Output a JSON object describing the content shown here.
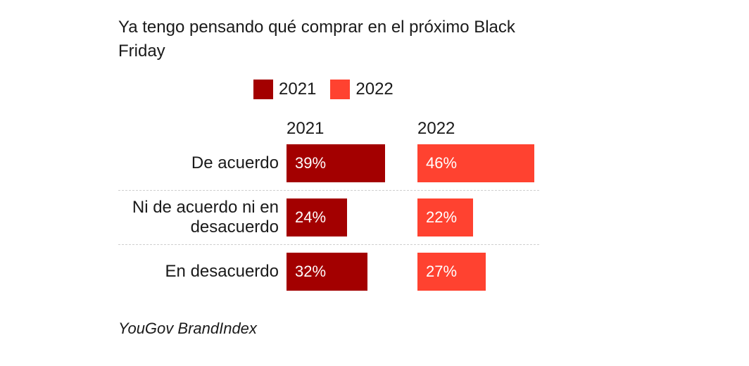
{
  "chart_data": {
    "type": "bar",
    "orientation": "horizontal",
    "title": "Ya tengo pensando qué comprar en el próximo Black Friday",
    "categories": [
      "De acuerdo",
      "Ni de acuerdo ni en desacuerdo",
      "En desacuerdo"
    ],
    "series": [
      {
        "name": "2021",
        "color": "#a30000",
        "values": [
          39,
          24,
          32
        ],
        "labels": [
          "39%",
          "24%",
          "32%"
        ]
      },
      {
        "name": "2022",
        "color": "#ff4230",
        "values": [
          46,
          22,
          27
        ],
        "labels": [
          "46%",
          "22%",
          "27%"
        ]
      }
    ],
    "legend_position": "top",
    "value_unit": "%",
    "source": "YouGov BrandIndex"
  }
}
